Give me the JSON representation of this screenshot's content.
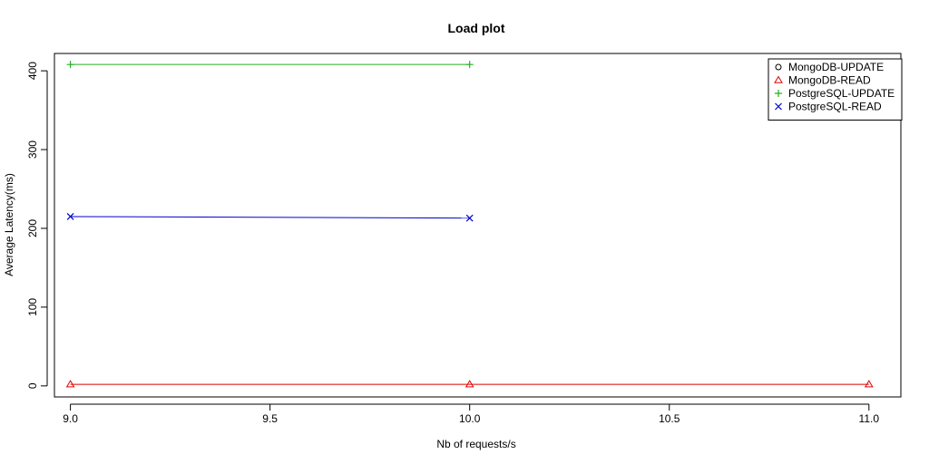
{
  "chart_data": {
    "type": "line",
    "title": "Load plot",
    "xlabel": "Nb of requests/s",
    "ylabel": "Average Latency(ms)",
    "xlim": [
      8.96,
      11.08
    ],
    "ylim": [
      -14,
      422
    ],
    "x_ticks": [
      "9.0",
      "9.5",
      "10.0",
      "10.5",
      "11.0"
    ],
    "y_ticks": [
      "0",
      "100",
      "200",
      "300",
      "400"
    ],
    "grid": false,
    "legend_position": "top-right",
    "series": [
      {
        "name": "MongoDB-UPDATE",
        "color": "#000000",
        "marker": "circle",
        "x": [],
        "y": []
      },
      {
        "name": "MongoDB-READ",
        "color": "#DF0000",
        "marker": "triangle",
        "x": [
          9.0,
          10.0,
          11.0
        ],
        "y": [
          2,
          2,
          2
        ]
      },
      {
        "name": "PostgreSQL-UPDATE",
        "color": "#22B022",
        "marker": "plus",
        "x": [
          9.0,
          10.0
        ],
        "y": [
          408,
          408
        ]
      },
      {
        "name": "PostgreSQL-READ",
        "color": "#0000CC",
        "marker": "cross",
        "x": [
          9.0,
          10.0
        ],
        "y": [
          215,
          213
        ]
      }
    ]
  }
}
